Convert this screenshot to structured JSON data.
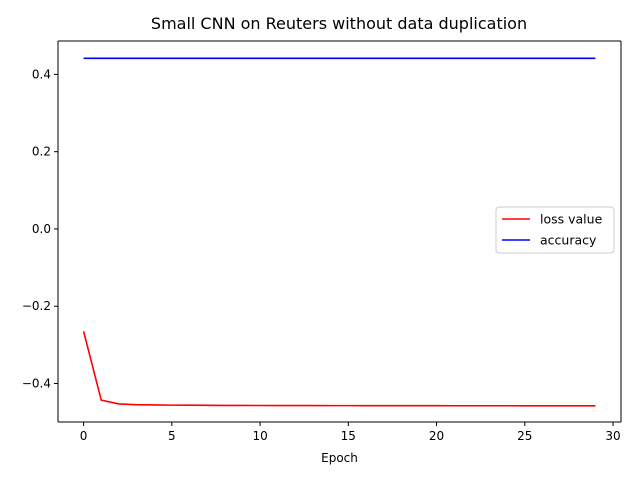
{
  "chart_data": {
    "type": "line",
    "title": "Small CNN on Reuters without data duplication",
    "xlabel": "Epoch",
    "ylabel": "",
    "xlim": [
      -1.45,
      30.45
    ],
    "ylim": [
      -0.4997,
      0.4865
    ],
    "x_ticks": [
      0,
      5,
      10,
      15,
      20,
      25,
      30
    ],
    "y_ticks": [
      -0.4,
      -0.2,
      0.0,
      0.2,
      0.4
    ],
    "x_tick_labels": [
      "0",
      "5",
      "10",
      "15",
      "20",
      "25",
      "30"
    ],
    "y_tick_labels": [
      "−0.4",
      "−0.2",
      "0.0",
      "0.2",
      "0.4"
    ],
    "grid": false,
    "legend_position": "center-right",
    "x": [
      0,
      1,
      2,
      3,
      4,
      5,
      6,
      7,
      8,
      9,
      10,
      11,
      12,
      13,
      14,
      15,
      16,
      17,
      18,
      19,
      20,
      21,
      22,
      23,
      24,
      25,
      26,
      27,
      28,
      29
    ],
    "series": [
      {
        "name": "loss value",
        "color": "#ff0000",
        "values": [
          -0.265,
          -0.443,
          -0.453,
          -0.455,
          -0.4555,
          -0.456,
          -0.4563,
          -0.4565,
          -0.4567,
          -0.4569,
          -0.457,
          -0.4571,
          -0.4572,
          -0.4572,
          -0.4573,
          -0.4573,
          -0.4574,
          -0.4574,
          -0.4575,
          -0.4575,
          -0.4575,
          -0.4576,
          -0.4576,
          -0.4576,
          -0.4576,
          -0.4577,
          -0.4577,
          -0.4577,
          -0.4577,
          -0.4578
        ]
      },
      {
        "name": "accuracy",
        "color": "#0000ff",
        "values": [
          0.4417,
          0.4417,
          0.4417,
          0.4417,
          0.4417,
          0.4417,
          0.4417,
          0.4417,
          0.4417,
          0.4417,
          0.4417,
          0.4417,
          0.4417,
          0.4417,
          0.4417,
          0.4417,
          0.4417,
          0.4417,
          0.4417,
          0.4417,
          0.4417,
          0.4417,
          0.4417,
          0.4417,
          0.4417,
          0.4417,
          0.4417,
          0.4417,
          0.4417,
          0.4417
        ]
      }
    ]
  }
}
